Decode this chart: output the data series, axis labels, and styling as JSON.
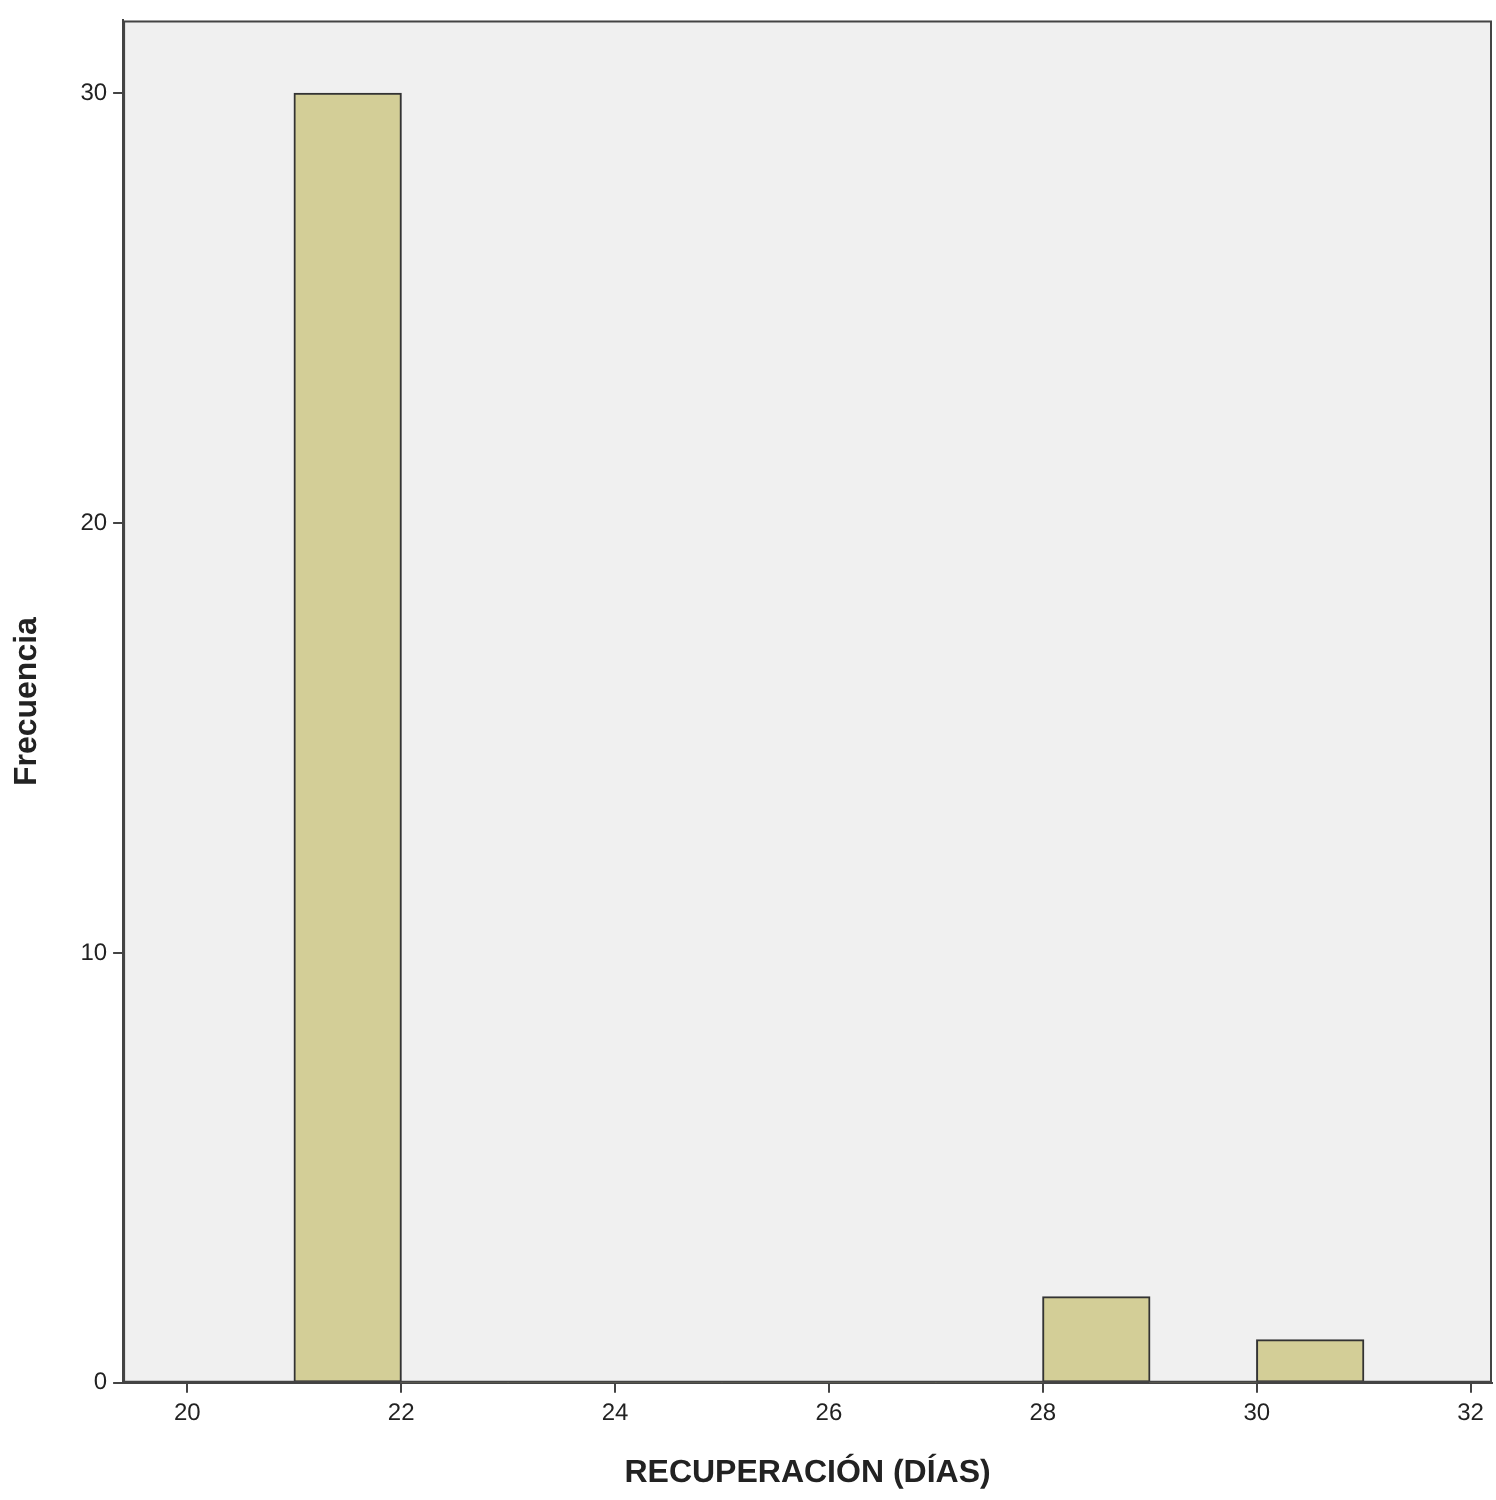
{
  "chart_data": {
    "type": "histogram",
    "xlabel": "RECUPERACIÓN (DÍAS)",
    "ylabel": "Frecuencia",
    "bins": [
      21,
      22,
      23,
      24,
      25,
      26,
      27,
      28,
      29,
      30,
      31
    ],
    "values": [
      30,
      0,
      0,
      0,
      0,
      0,
      0,
      2,
      0,
      1
    ],
    "color": "#d3ce97",
    "xlim": [
      19.4,
      32.2
    ],
    "xticks": [
      20,
      22,
      24,
      26,
      28,
      30,
      32
    ],
    "ylim": [
      0,
      31.7
    ],
    "yticks": [
      0,
      10,
      20,
      30
    ],
    "grid": false
  }
}
